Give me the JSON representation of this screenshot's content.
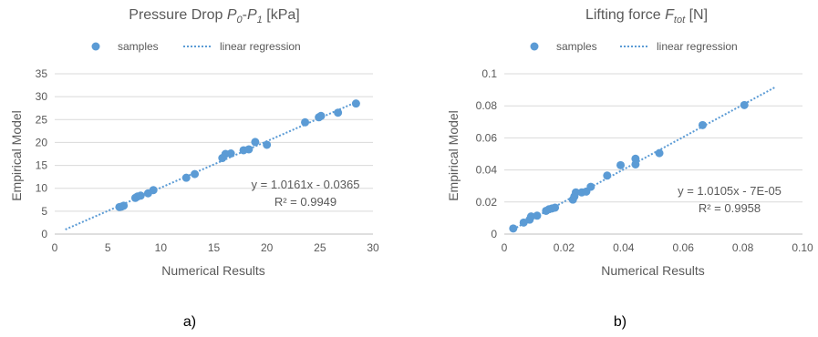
{
  "colors": {
    "marker": "#5b9bd5",
    "trendline": "#5b9bd5",
    "grid": "#d9d9d9",
    "text": "#595959"
  },
  "chart_data": [
    {
      "type": "scatter",
      "title_main": "Pressure Drop ",
      "title_sym": "P",
      "title_sub1": "0",
      "title_dash": "-",
      "title_sym2": "P",
      "title_sub2": "1",
      "title_unit": " [kPa]",
      "legend": {
        "samples": "samples",
        "trend": "linear regression"
      },
      "xlabel": "Numerical Results",
      "ylabel": "Empirical Model",
      "xlim": [
        0,
        30
      ],
      "ylim": [
        0,
        35
      ],
      "xticks": [
        "0",
        "5",
        "10",
        "15",
        "20",
        "25",
        "30"
      ],
      "yticks": [
        "0",
        "5",
        "10",
        "15",
        "20",
        "25",
        "30",
        "35"
      ],
      "equation": "y = 1.0161x - 0.0365",
      "r2": "R² = 0.9949",
      "trendline": {
        "x": [
          1,
          28.7
        ],
        "y": [
          1.0,
          29.1
        ]
      },
      "points": [
        [
          6.1,
          5.9
        ],
        [
          6.3,
          6.0
        ],
        [
          6.5,
          6.2
        ],
        [
          7.6,
          7.9
        ],
        [
          7.8,
          8.2
        ],
        [
          8.1,
          8.4
        ],
        [
          8.8,
          8.9
        ],
        [
          9.3,
          9.6
        ],
        [
          12.4,
          12.3
        ],
        [
          13.2,
          13.1
        ],
        [
          15.8,
          16.6
        ],
        [
          16.1,
          17.5
        ],
        [
          16.6,
          17.6
        ],
        [
          17.8,
          18.3
        ],
        [
          18.3,
          18.5
        ],
        [
          18.9,
          20.1
        ],
        [
          20.0,
          19.5
        ],
        [
          23.6,
          24.4
        ],
        [
          24.9,
          25.5
        ],
        [
          25.1,
          25.8
        ],
        [
          26.7,
          26.5
        ],
        [
          28.4,
          28.5
        ]
      ],
      "caption": "a)"
    },
    {
      "type": "scatter",
      "title_main": "Lifting force ",
      "title_sym": "F",
      "title_sub1": "tot",
      "title_unit": " [N]",
      "legend": {
        "samples": "samples",
        "trend": "linear regression"
      },
      "xlabel": "Numerical Results",
      "ylabel": "Empirical Model",
      "xlim": [
        0,
        0.1
      ],
      "ylim": [
        0,
        0.1
      ],
      "xticks": [
        "0",
        "0.02",
        "0.04",
        "0.06",
        "0.08",
        "0.10"
      ],
      "yticks": [
        "0",
        "0.02",
        "0.04",
        "0.06",
        "0.08",
        "0.1"
      ],
      "equation": "y = 1.0105x - 7E-05",
      "r2": "R² = 0.9958",
      "trendline": {
        "x": [
          0.003,
          0.091
        ],
        "y": [
          0.003,
          0.0918
        ]
      },
      "points": [
        [
          0.003,
          0.0035
        ],
        [
          0.0065,
          0.0072
        ],
        [
          0.0085,
          0.009
        ],
        [
          0.009,
          0.011
        ],
        [
          0.011,
          0.0115
        ],
        [
          0.014,
          0.0145
        ],
        [
          0.015,
          0.0155
        ],
        [
          0.016,
          0.016
        ],
        [
          0.017,
          0.0165
        ],
        [
          0.023,
          0.0215
        ],
        [
          0.0235,
          0.0235
        ],
        [
          0.024,
          0.026
        ],
        [
          0.026,
          0.026
        ],
        [
          0.0275,
          0.0265
        ],
        [
          0.029,
          0.0295
        ],
        [
          0.0345,
          0.0365
        ],
        [
          0.039,
          0.043
        ],
        [
          0.044,
          0.047
        ],
        [
          0.044,
          0.0435
        ],
        [
          0.052,
          0.0505
        ],
        [
          0.0665,
          0.068
        ],
        [
          0.0805,
          0.0805
        ]
      ],
      "caption": "b)"
    }
  ]
}
